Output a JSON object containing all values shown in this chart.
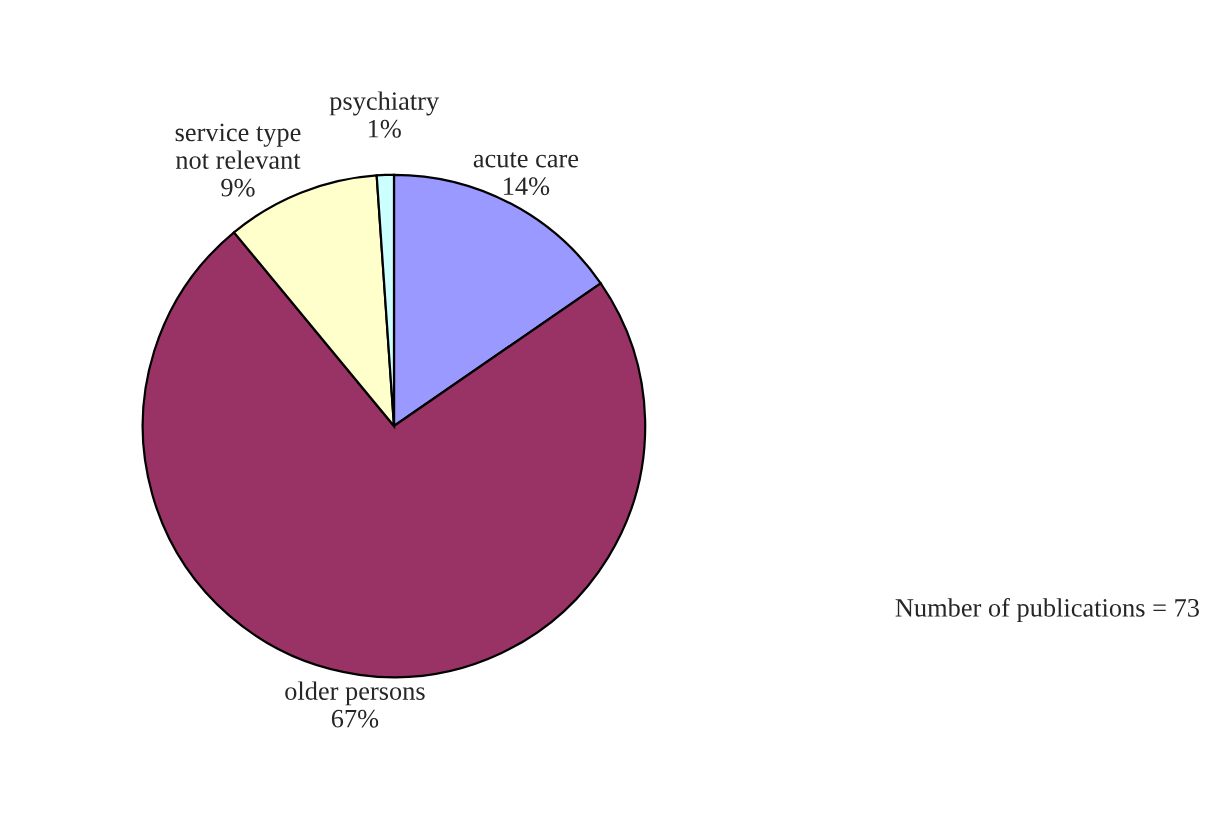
{
  "chart_data": {
    "type": "pie",
    "categories": [
      "acute care",
      "older persons",
      "service type\nnot relevant",
      "psychiatry"
    ],
    "values": [
      14,
      67,
      9,
      1
    ],
    "value_labels": [
      "14%",
      "67%",
      "9%",
      "1%"
    ],
    "colors": [
      "#9999ff",
      "#993366",
      "#ffffcc",
      "#ccffff"
    ],
    "annotations": [
      "Number of publications = 73"
    ],
    "legend": false
  }
}
